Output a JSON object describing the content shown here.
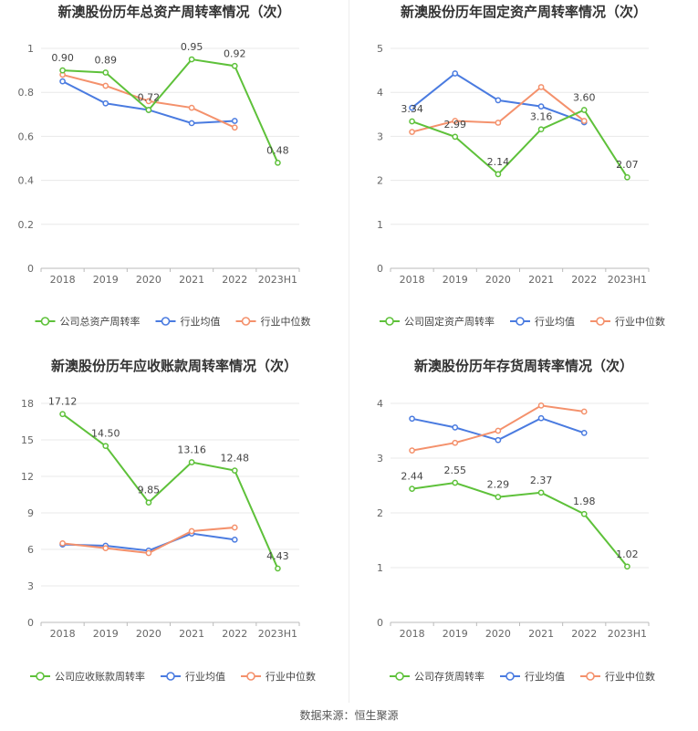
{
  "source_text": "数据来源：恒生聚源",
  "colors": {
    "company": "#5ec13a",
    "avg": "#4a7be0",
    "median": "#f4916c",
    "axis": "#bbbbbb",
    "grid": "#e8e8e8",
    "tick": "#666666",
    "title": "#333333"
  },
  "chart_data": [
    {
      "type": "line",
      "title": "新澳股份历年总资产周转率情况（次）",
      "categories": [
        "2018",
        "2019",
        "2020",
        "2021",
        "2022",
        "2023H1"
      ],
      "ylim": [
        0,
        1
      ],
      "yticks": [
        "0",
        "0.2",
        "0.4",
        "0.6",
        "0.8",
        "1"
      ],
      "grid": true,
      "legend_position": "bottom",
      "series": [
        {
          "name": "公司总资产周转率",
          "values": [
            0.9,
            0.89,
            0.72,
            0.95,
            0.92,
            0.48
          ],
          "labels": [
            "0.90",
            "0.89",
            "0.72",
            "0.95",
            "0.92",
            "0.48"
          ]
        },
        {
          "name": "行业均值",
          "values": [
            0.85,
            0.75,
            0.72,
            0.66,
            0.67,
            null
          ]
        },
        {
          "name": "行业中位数",
          "values": [
            0.88,
            0.83,
            0.76,
            0.73,
            0.64,
            null
          ]
        }
      ]
    },
    {
      "type": "line",
      "title": "新澳股份历年固定资产周转率情况（次）",
      "categories": [
        "2018",
        "2019",
        "2020",
        "2021",
        "2022",
        "2023H1"
      ],
      "ylim": [
        0,
        5
      ],
      "yticks": [
        "0",
        "1",
        "2",
        "3",
        "4",
        "5"
      ],
      "grid": true,
      "legend_position": "bottom",
      "series": [
        {
          "name": "公司固定资产周转率",
          "values": [
            3.34,
            2.99,
            2.14,
            3.16,
            3.6,
            2.07
          ],
          "labels": [
            "3.34",
            "2.99",
            "2.14",
            "3.16",
            "3.60",
            "2.07"
          ]
        },
        {
          "name": "行业均值",
          "values": [
            3.65,
            4.43,
            3.82,
            3.68,
            3.32,
            null
          ]
        },
        {
          "name": "行业中位数",
          "values": [
            3.1,
            3.35,
            3.31,
            4.12,
            3.35,
            null
          ]
        }
      ]
    },
    {
      "type": "line",
      "title": "新澳股份历年应收账款周转率情况（次）",
      "categories": [
        "2018",
        "2019",
        "2020",
        "2021",
        "2022",
        "2023H1"
      ],
      "ylim": [
        0,
        18
      ],
      "yticks": [
        "0",
        "3",
        "6",
        "9",
        "12",
        "15",
        "18"
      ],
      "grid": true,
      "legend_position": "bottom",
      "series": [
        {
          "name": "公司应收账款周转率",
          "values": [
            17.12,
            14.5,
            9.85,
            13.16,
            12.48,
            4.43
          ],
          "labels": [
            "17.12",
            "14.50",
            "9.85",
            "13.16",
            "12.48",
            "4.43"
          ]
        },
        {
          "name": "行业均值",
          "values": [
            6.4,
            6.3,
            5.9,
            7.3,
            6.8,
            null
          ]
        },
        {
          "name": "行业中位数",
          "values": [
            6.5,
            6.1,
            5.7,
            7.5,
            7.8,
            null
          ]
        }
      ]
    },
    {
      "type": "line",
      "title": "新澳股份历年存货周转率情况（次）",
      "categories": [
        "2018",
        "2019",
        "2020",
        "2021",
        "2022",
        "2023H1"
      ],
      "ylim": [
        0,
        4
      ],
      "yticks": [
        "0",
        "1",
        "2",
        "3",
        "4"
      ],
      "grid": true,
      "legend_position": "bottom",
      "series": [
        {
          "name": "公司存货周转率",
          "values": [
            2.44,
            2.55,
            2.29,
            2.37,
            1.98,
            1.02
          ],
          "labels": [
            "2.44",
            "2.55",
            "2.29",
            "2.37",
            "1.98",
            "1.02"
          ]
        },
        {
          "name": "行业均值",
          "values": [
            3.72,
            3.56,
            3.33,
            3.73,
            3.46,
            null
          ]
        },
        {
          "name": "行业中位数",
          "values": [
            3.14,
            3.28,
            3.5,
            3.96,
            3.85,
            null
          ]
        }
      ]
    }
  ]
}
